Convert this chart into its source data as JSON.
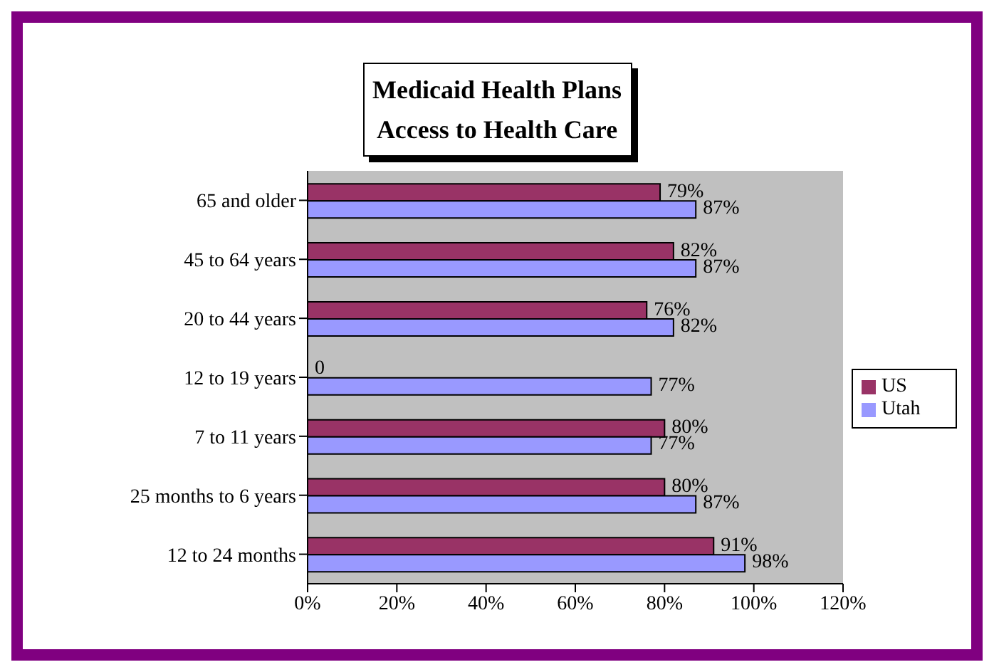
{
  "chart_data": {
    "type": "bar",
    "orientation": "horizontal",
    "title": "Medicaid Health Plans\nAccess to Health Care",
    "categories": [
      "65 and older",
      "45 to 64 years",
      "20 to 44 years",
      "12 to 19 years",
      "7 to 11 years",
      "25 months to 6 years",
      "12 to 24 months"
    ],
    "series": [
      {
        "name": "US",
        "color": "#993366",
        "values": [
          79,
          82,
          76,
          0,
          80,
          80,
          91
        ],
        "value_labels": [
          "79%",
          "82%",
          "76%",
          "0",
          "80%",
          "80%",
          "91%"
        ]
      },
      {
        "name": "Utah",
        "color": "#9999ff",
        "values": [
          87,
          87,
          82,
          77,
          77,
          87,
          98
        ],
        "value_labels": [
          "87%",
          "87%",
          "82%",
          "77%",
          "77%",
          "87%",
          "98%"
        ]
      }
    ],
    "xlim": [
      0,
      120
    ],
    "xticks": [
      {
        "value": 0,
        "label": "0%"
      },
      {
        "value": 20,
        "label": "20%"
      },
      {
        "value": 40,
        "label": "40%"
      },
      {
        "value": 60,
        "label": "60%"
      },
      {
        "value": 80,
        "label": "80%"
      },
      {
        "value": 100,
        "label": "100%"
      },
      {
        "value": 120,
        "label": "120%"
      }
    ],
    "grid": false,
    "legend": "right"
  }
}
